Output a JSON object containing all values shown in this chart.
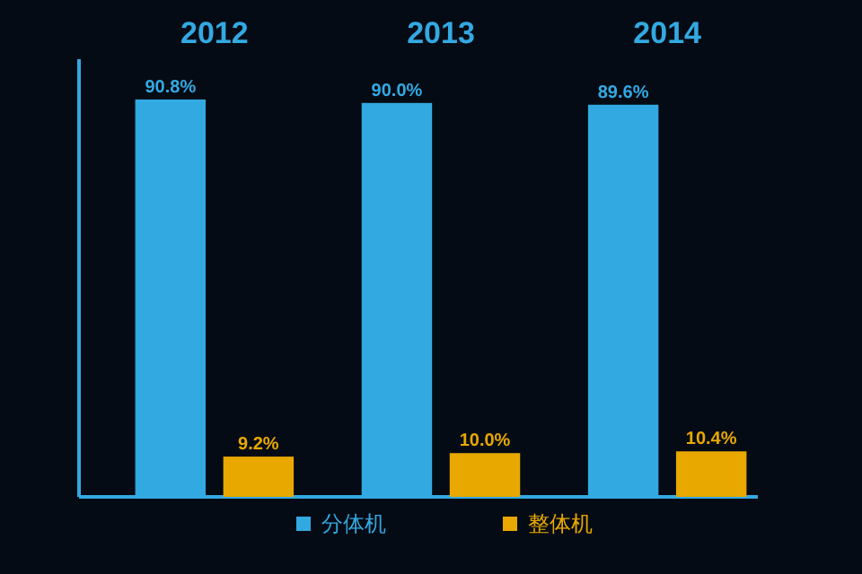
{
  "chart_data": {
    "type": "bar",
    "categories": [
      "2012",
      "2013",
      "2014"
    ],
    "series": [
      {
        "name": "分体机",
        "color": "#33a9e2",
        "values": [
          90.8,
          90.0,
          89.6
        ],
        "value_labels": [
          "90.8%",
          "90.0%",
          "89.6%"
        ]
      },
      {
        "name": "整体机",
        "color": "#e8a800",
        "values": [
          9.2,
          10.0,
          10.4
        ],
        "value_labels": [
          "9.2%",
          "10.0%",
          "10.4%"
        ]
      }
    ],
    "ylim": [
      0,
      100
    ],
    "legend": "bottom",
    "tick_labels": "x"
  }
}
